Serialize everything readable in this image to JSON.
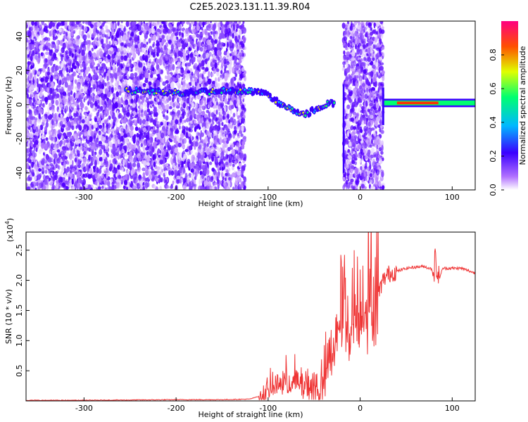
{
  "title": "C2E5.2023.131.11.39.R04",
  "chart_data": [
    {
      "type": "heatmap",
      "title": "C2E5.2023.131.11.39.R04",
      "xlabel": "Height of straight line (km)",
      "ylabel": "Frequency (Hz)",
      "xlim": [
        -363,
        125
      ],
      "ylim": [
        -50,
        49
      ],
      "xticks": [
        -300,
        -200,
        -100,
        0,
        100
      ],
      "yticks": [
        -40,
        -20,
        0,
        20,
        40
      ],
      "colorbar": {
        "label": "Normalized spectral amplitude",
        "range": [
          0,
          1
        ],
        "ticks": [
          "0.0",
          "0.2",
          "0.4",
          "0.6",
          "0.8"
        ],
        "colors": [
          "#ffffff",
          "#b070ff",
          "#3a00ff",
          "#00b8ff",
          "#00ff70",
          "#e0ff00",
          "#ff5000",
          "#ff0080"
        ]
      },
      "ridge": [
        {
          "x": -255,
          "y": 8
        },
        {
          "x": -235,
          "y": 8
        },
        {
          "x": -205,
          "y": 7
        },
        {
          "x": -180,
          "y": 7
        },
        {
          "x": -150,
          "y": 8
        },
        {
          "x": -125,
          "y": 8
        },
        {
          "x": -105,
          "y": 7
        },
        {
          "x": -85,
          "y": 0
        },
        {
          "x": -60,
          "y": -6
        },
        {
          "x": -40,
          "y": 0
        },
        {
          "x": -28,
          "y": 1
        },
        {
          "x": 25,
          "y": 1
        },
        {
          "x": 60,
          "y": 1
        },
        {
          "x": 90,
          "y": 2
        },
        {
          "x": 125,
          "y": 2
        }
      ],
      "noise_regions": [
        [
          -363,
          -125
        ],
        [
          -18,
          25
        ]
      ]
    },
    {
      "type": "line",
      "xlabel": "Height of straight line (km)",
      "ylabel": "SNR (10 * v/v)",
      "y_multiplier": "(x10",
      "y_multiplier_exp": "4",
      "xlim": [
        -363,
        125
      ],
      "ylim": [
        0,
        2.8
      ],
      "xticks": [
        -300,
        -200,
        -100,
        0,
        100
      ],
      "yticks": [
        "0.5",
        "1.0",
        "1.5",
        "2.0",
        "2.5"
      ],
      "color": "#ef3535",
      "series": [
        {
          "x": [
            -363,
            -300,
            -200,
            -150,
            -120,
            -105,
            -95,
            -85,
            -75,
            -65,
            -55,
            -45,
            -40,
            -35,
            -30,
            -25,
            -20,
            -15,
            -10,
            -5,
            0,
            5,
            10,
            15,
            20,
            25,
            30,
            40,
            50,
            60,
            70,
            75,
            80,
            82,
            85,
            90,
            95,
            100,
            110,
            125
          ],
          "y": [
            0.01,
            0.01,
            0.02,
            0.02,
            0.03,
            0.1,
            0.25,
            0.3,
            0.35,
            0.3,
            0.25,
            0.2,
            0.3,
            0.6,
            0.9,
            1.2,
            1.7,
            1.4,
            1.3,
            1.5,
            1.5,
            1.7,
            1.9,
            1.6,
            1.8,
            2.0,
            2.1,
            2.15,
            2.2,
            2.22,
            2.23,
            2.2,
            2.18,
            2.35,
            2.0,
            2.2,
            2.2,
            2.2,
            2.2,
            2.12
          ]
        }
      ]
    }
  ]
}
